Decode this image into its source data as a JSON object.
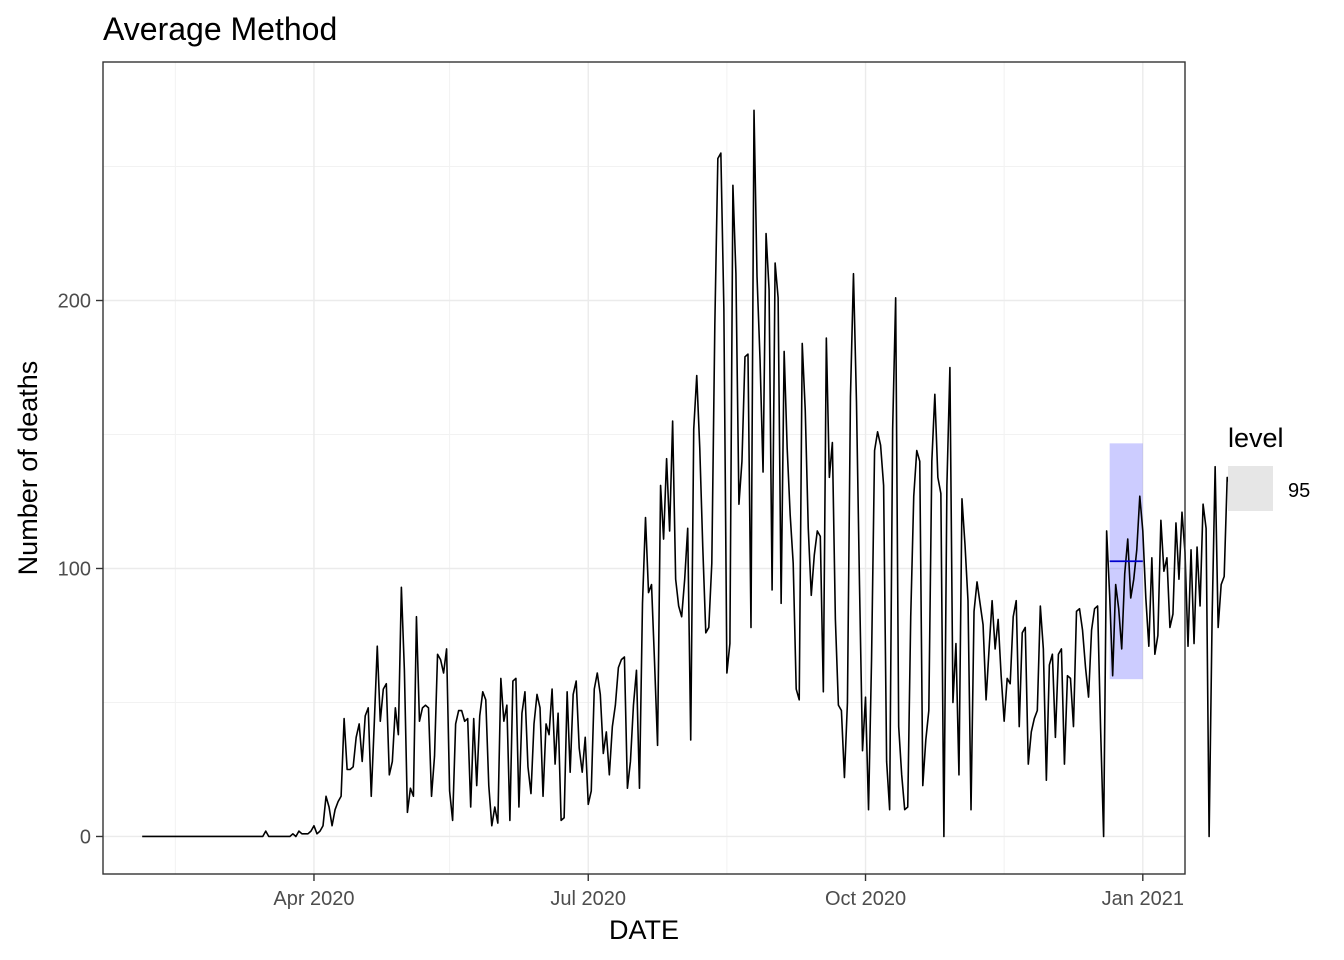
{
  "chart_data": {
    "type": "line",
    "title": "Average Method",
    "xlabel": "DATE",
    "ylabel": "Number of deaths",
    "x_ticks": [
      "Apr 2020",
      "Jul 2020",
      "Oct 2020",
      "Jan 2021"
    ],
    "y_ticks": [
      "0",
      "100",
      "200"
    ],
    "xlim": [
      "2020-01-22",
      "2021-01-15"
    ],
    "ylim": [
      -14,
      289
    ],
    "grid": true,
    "legend": {
      "title": "level",
      "position": "right",
      "entries": [
        {
          "label": "95",
          "color": "#e6e6e6"
        }
      ]
    },
    "series": [
      {
        "color": "#000000",
        "start_date": "2020-02-04",
        "step_days": 1,
        "values": [
          0,
          0,
          0,
          0,
          0,
          0,
          0,
          0,
          0,
          0,
          0,
          0,
          0,
          0,
          0,
          0,
          0,
          0,
          0,
          0,
          0,
          0,
          0,
          0,
          0,
          0,
          0,
          0,
          0,
          0,
          0,
          0,
          0,
          0,
          0,
          0,
          0,
          0,
          0,
          0,
          0,
          2,
          0,
          0,
          0,
          0,
          0,
          0,
          0,
          0,
          1,
          0,
          2,
          1,
          1,
          1,
          2,
          4,
          1,
          2,
          4,
          15,
          11,
          4,
          10,
          13,
          15,
          44,
          25,
          25,
          26,
          37,
          42,
          28,
          45,
          48,
          15,
          42,
          71,
          43,
          55,
          57,
          23,
          28,
          48,
          38,
          93,
          62,
          9,
          18,
          15,
          82,
          43,
          48,
          49,
          48,
          15,
          30,
          68,
          66,
          61,
          70,
          17,
          6,
          42,
          47,
          47,
          43,
          44,
          11,
          44,
          19,
          45,
          54,
          51,
          19,
          4,
          11,
          5,
          59,
          43,
          49,
          6,
          58,
          59,
          11,
          46,
          54,
          26,
          16,
          42,
          53,
          48,
          15,
          42,
          38,
          55,
          27,
          46,
          6,
          7,
          54,
          24,
          53,
          58,
          33,
          24,
          37,
          12,
          17,
          55,
          61,
          53,
          31,
          39,
          23,
          41,
          49,
          63,
          66,
          67,
          18,
          28,
          49,
          62,
          18,
          87,
          119,
          91,
          94,
          65,
          34,
          131,
          111,
          141,
          114,
          155,
          96,
          86,
          82,
          96,
          115,
          36,
          152,
          172,
          145,
          108,
          76,
          78,
          102,
          191,
          253,
          255,
          197,
          61,
          72,
          243,
          210,
          124,
          140,
          179,
          180,
          78,
          271,
          209,
          178,
          136,
          225,
          204,
          92,
          214,
          201,
          87,
          181,
          145,
          120,
          102,
          55,
          51,
          184,
          159,
          115,
          90,
          105,
          114,
          112,
          54,
          186,
          134,
          147,
          81,
          49,
          47,
          22,
          50,
          164,
          210,
          162,
          94,
          32,
          52,
          10,
          66,
          144,
          151,
          146,
          131,
          28,
          10,
          152,
          201,
          41,
          23,
          10,
          11,
          82,
          127,
          144,
          140,
          19,
          36,
          47,
          140,
          165,
          134,
          128,
          0,
          131,
          175,
          50,
          72,
          23,
          126,
          109,
          88,
          10,
          84,
          95,
          87,
          79,
          51,
          70,
          88,
          70,
          81,
          60,
          43,
          59,
          57,
          82,
          88,
          41,
          76,
          78,
          27,
          39,
          44,
          47,
          86,
          70,
          21,
          64,
          68,
          37,
          68,
          70,
          27,
          60,
          59,
          41,
          84,
          85,
          77,
          63,
          52,
          77,
          85,
          86,
          40,
          0,
          114,
          90,
          60,
          94,
          85,
          70,
          98,
          111,
          89,
          96,
          107,
          127,
          114,
          89,
          71,
          104,
          68,
          75,
          118,
          99,
          104,
          78,
          83,
          117,
          96,
          121,
          106,
          71,
          107,
          72,
          108,
          86,
          124,
          115,
          0,
          82,
          138,
          78,
          94,
          97,
          134,
          131
        ]
      }
    ],
    "forecast": {
      "start": "2020-12-21",
      "end": "2021-01-01",
      "mean": 102.7,
      "lower_95": 58.7,
      "upper_95": 146.7,
      "line_color": "#0000cd",
      "band_color": "#0000ff",
      "band_opacity": 0.2
    }
  }
}
